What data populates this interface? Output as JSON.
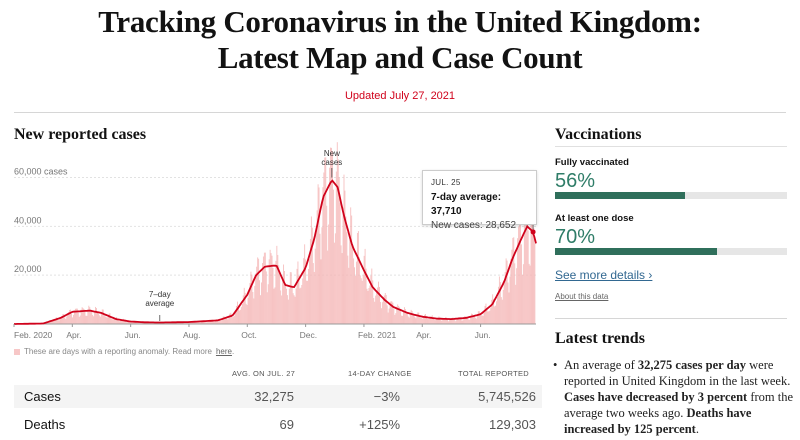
{
  "page": {
    "headline_line1": "Tracking Coronavirus in the United Kingdom:",
    "headline_line2": "Latest Map and Case Count",
    "updated": "Updated July 27, 2021"
  },
  "cases_section": {
    "title": "New reported cases",
    "annotation_peak": [
      "New",
      "cases"
    ],
    "annotation_avg": [
      "7–day",
      "average"
    ],
    "tooltip": {
      "date": "JUL. 25",
      "avg_label": "7-day average: 37,710",
      "cases_label": "New cases: 28,652"
    },
    "note_text": "These are days with a reporting anomaly. Read more",
    "note_link": "here",
    "note_end": "."
  },
  "chart_data": {
    "type": "bar",
    "title": "New reported cases",
    "y_ticks": [
      "20,000",
      "40,000",
      "60,000 cases"
    ],
    "y_tick_values": [
      20000,
      40000,
      60000
    ],
    "ylim": [
      0,
      68000
    ],
    "x_tick_labels": [
      "Feb. 2020",
      "Apr.",
      "Jun.",
      "Aug.",
      "Oct.",
      "Dec.",
      "Feb. 2021",
      "Apr.",
      "Jun."
    ],
    "x_tick_months": [
      0,
      2,
      4,
      6,
      8,
      10,
      12,
      14,
      16
    ],
    "x_range_months": [
      0,
      17.9
    ],
    "series": [
      {
        "name": "7-day average",
        "x_months": [
          0,
          1.0,
          1.6,
          2.0,
          2.6,
          3.0,
          3.5,
          4.0,
          4.5,
          5.0,
          6.0,
          7.0,
          7.5,
          8.0,
          8.3,
          8.6,
          9.0,
          9.3,
          9.6,
          10.0,
          10.3,
          10.6,
          10.9,
          11.1,
          11.3,
          11.6,
          12.0,
          12.3,
          12.7,
          13.0,
          13.5,
          14.0,
          14.5,
          15.0,
          15.5,
          16.0,
          16.4,
          16.8,
          17.1,
          17.4,
          17.6,
          17.8,
          17.9
        ],
        "values": [
          0,
          200,
          2500,
          5000,
          5500,
          4500,
          2000,
          1000,
          700,
          600,
          800,
          1500,
          3500,
          12000,
          20000,
          23500,
          24000,
          16000,
          15000,
          23000,
          35000,
          52000,
          59000,
          56000,
          45000,
          32000,
          22000,
          15000,
          10000,
          7000,
          4500,
          3000,
          2200,
          2000,
          2500,
          4000,
          8000,
          17000,
          27000,
          35000,
          40000,
          37700,
          33000
        ]
      }
    ],
    "tooltip": {
      "date": "Jul. 25",
      "seven_day_average": 37710,
      "new_cases": 28652
    },
    "colors": {
      "line": "#d0021b",
      "bars": "#f5b5b5"
    }
  },
  "table": {
    "headers": [
      "AVG. ON JUL. 27",
      "14-DAY CHANGE",
      "TOTAL REPORTED"
    ],
    "rows": [
      {
        "label": "Cases",
        "avg": "32,275",
        "change": "−3%",
        "total": "5,745,526"
      },
      {
        "label": "Deaths",
        "avg": "69",
        "change": "+125%",
        "total": "129,303"
      }
    ]
  },
  "vaccinations": {
    "title": "Vaccinations",
    "items": [
      {
        "label": "Fully vaccinated",
        "pct": "56%",
        "fraction": 0.56
      },
      {
        "label": "At least one dose",
        "pct": "70%",
        "fraction": 0.7
      }
    ],
    "details_link": "See more details ›",
    "about_link": "About this data",
    "color": "#2f7d68"
  },
  "trends": {
    "title": "Latest trends",
    "p1": "An average of ",
    "b1": "32,275 cases per day",
    "p2": " were reported in United Kingdom in the last week. ",
    "b2": "Cases have decreased by 3 percent",
    "p3": " from the average two weeks ago. ",
    "b3": "Deaths have increased by 125 percent",
    "p4": "."
  }
}
